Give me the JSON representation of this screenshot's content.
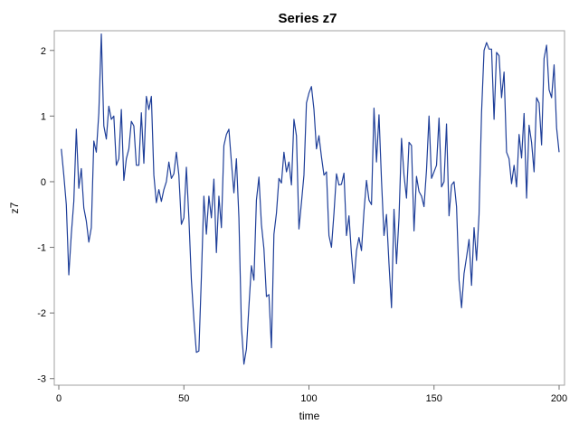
{
  "chart_data": {
    "type": "line",
    "title": "Series z7",
    "xlabel": "time",
    "ylabel": "z7",
    "xlim": [
      0,
      200
    ],
    "ylim": [
      -3.1,
      2.3
    ],
    "xticks": [
      0,
      50,
      100,
      150,
      200
    ],
    "yticks": [
      -3,
      -2,
      -1,
      0,
      1,
      2
    ],
    "grid": false,
    "legend": "none",
    "line_color": "#1f3f99",
    "series": [
      {
        "x": [
          1,
          2,
          3,
          4,
          5,
          6,
          7,
          8,
          9,
          10,
          11,
          12,
          13,
          14,
          15,
          16,
          17,
          18,
          19,
          20,
          21,
          22,
          23,
          24,
          25,
          26,
          27,
          28,
          29,
          30,
          31,
          32,
          33,
          34,
          35,
          36,
          37,
          38,
          39,
          40,
          41,
          42,
          43,
          44,
          45,
          46,
          47,
          48,
          49,
          50,
          51,
          52,
          53,
          54,
          55,
          56,
          57,
          58,
          59,
          60,
          61,
          62,
          63,
          64,
          65,
          66,
          67,
          68,
          69,
          70,
          71,
          72,
          73,
          74,
          75,
          76,
          77,
          78,
          79,
          80,
          81,
          82,
          83,
          84,
          85,
          86,
          87,
          88,
          89,
          90,
          91,
          92,
          93,
          94,
          95,
          96,
          97,
          98,
          99,
          100,
          101,
          102,
          103,
          104,
          105,
          106,
          107,
          108,
          109,
          110,
          111,
          112,
          113,
          114,
          115,
          116,
          117,
          118,
          119,
          120,
          121,
          122,
          123,
          124,
          125,
          126,
          127,
          128,
          129,
          130,
          131,
          132,
          133,
          134,
          135,
          136,
          137,
          138,
          139,
          140,
          141,
          142,
          143,
          144,
          145,
          146,
          147,
          148,
          149,
          150,
          151,
          152,
          153,
          154,
          155,
          156,
          157,
          158,
          159,
          160,
          161,
          162,
          163,
          164,
          165,
          166,
          167,
          168,
          169,
          170,
          171,
          172,
          173,
          174,
          175,
          176,
          177,
          178,
          179,
          180,
          181,
          182,
          183,
          184,
          185,
          186,
          187,
          188,
          189,
          190,
          191,
          192,
          193,
          194,
          195,
          196,
          197,
          198,
          199,
          200
        ],
        "y": [
          0.5,
          0.1,
          -0.35,
          -1.42,
          -0.8,
          -0.3,
          0.8,
          -0.1,
          0.2,
          -0.4,
          -0.6,
          -0.92,
          -0.7,
          0.62,
          0.45,
          1.05,
          2.25,
          0.85,
          0.65,
          1.15,
          0.95,
          1.0,
          0.25,
          0.35,
          1.1,
          0.02,
          0.35,
          0.5,
          0.92,
          0.85,
          0.25,
          0.25,
          1.05,
          0.28,
          1.3,
          1.1,
          1.3,
          0.1,
          -0.32,
          -0.12,
          -0.3,
          -0.12,
          0.0,
          0.3,
          0.05,
          0.12,
          0.45,
          0.1,
          -0.65,
          -0.55,
          0.22,
          -0.55,
          -1.5,
          -2.1,
          -2.6,
          -2.58,
          -1.45,
          -0.22,
          -0.8,
          -0.22,
          -0.55,
          0.04,
          -1.08,
          -0.22,
          -0.7,
          0.55,
          0.72,
          0.8,
          0.3,
          -0.17,
          0.35,
          -0.55,
          -2.2,
          -2.78,
          -2.55,
          -1.9,
          -1.28,
          -1.5,
          -0.28,
          0.07,
          -0.65,
          -1.02,
          -1.75,
          -1.72,
          -2.53,
          -0.8,
          -0.48,
          0.05,
          -0.02,
          0.45,
          0.15,
          0.3,
          -0.05,
          0.95,
          0.7,
          -0.72,
          -0.32,
          0.1,
          1.2,
          1.35,
          1.45,
          1.1,
          0.5,
          0.7,
          0.38,
          0.1,
          0.15,
          -0.82,
          -1.0,
          -0.48,
          0.12,
          -0.05,
          -0.04,
          0.13,
          -0.82,
          -0.52,
          -1.1,
          -1.55,
          -1.05,
          -0.85,
          -1.05,
          -0.45,
          0.02,
          -0.28,
          -0.35,
          1.12,
          0.3,
          1.02,
          0.02,
          -0.82,
          -0.5,
          -1.25,
          -1.92,
          -0.42,
          -1.25,
          -0.55,
          0.66,
          0.1,
          -0.25,
          0.6,
          0.55,
          -0.75,
          0.08,
          -0.15,
          -0.22,
          -0.38,
          0.18,
          1.0,
          0.05,
          0.15,
          0.25,
          0.97,
          -0.08,
          0.0,
          0.88,
          -0.52,
          -0.05,
          0.0,
          -0.38,
          -1.5,
          -1.92,
          -1.4,
          -1.15,
          -0.88,
          -1.58,
          -0.7,
          -1.2,
          -0.5,
          1.05,
          2.0,
          2.12,
          2.02,
          2.02,
          0.95,
          1.97,
          1.92,
          1.28,
          1.67,
          0.45,
          0.35,
          -0.03,
          0.25,
          -0.08,
          0.72,
          0.36,
          1.04,
          -0.25,
          0.86,
          0.6,
          0.15,
          1.28,
          1.2,
          0.56,
          1.88,
          2.08,
          1.4,
          1.28,
          1.78,
          0.82,
          0.45
        ]
      }
    ]
  }
}
